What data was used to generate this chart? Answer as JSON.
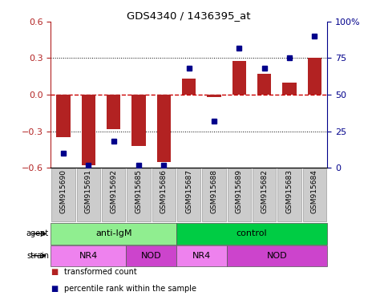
{
  "title": "GDS4340 / 1436395_at",
  "samples": [
    "GSM915690",
    "GSM915691",
    "GSM915692",
    "GSM915685",
    "GSM915686",
    "GSM915687",
    "GSM915688",
    "GSM915689",
    "GSM915682",
    "GSM915683",
    "GSM915684"
  ],
  "bar_values": [
    -0.35,
    -0.58,
    -0.28,
    -0.42,
    -0.55,
    0.13,
    -0.02,
    0.28,
    0.17,
    0.1,
    0.3
  ],
  "dot_values": [
    10,
    2,
    18,
    2,
    2,
    68,
    32,
    82,
    68,
    75,
    90
  ],
  "ylim_left": [
    -0.6,
    0.6
  ],
  "ylim_right": [
    0,
    100
  ],
  "yticks_left": [
    -0.6,
    -0.3,
    0.0,
    0.3,
    0.6
  ],
  "yticks_right": [
    0,
    25,
    50,
    75,
    100
  ],
  "yticklabels_right": [
    "0",
    "25",
    "50",
    "75",
    "100%"
  ],
  "bar_color": "#b22222",
  "dot_color": "#00008b",
  "zero_line_color": "#cc0000",
  "grid_line_color": "#000000",
  "agent_labels": [
    {
      "label": "anti-IgM",
      "start": 0,
      "end": 5
    },
    {
      "label": "control",
      "start": 5,
      "end": 11
    }
  ],
  "agent_color_light": "#90ee90",
  "agent_color_dark": "#00cc44",
  "agent_colors_per_label": {
    "anti-IgM": "#90ee90",
    "control": "#00cc44"
  },
  "strain_labels": [
    {
      "label": "NR4",
      "start": 0,
      "end": 3
    },
    {
      "label": "NOD",
      "start": 3,
      "end": 5
    },
    {
      "label": "NR4",
      "start": 5,
      "end": 7
    },
    {
      "label": "NOD",
      "start": 7,
      "end": 11
    }
  ],
  "strain_color_nr4": "#ee82ee",
  "strain_color_nod": "#cc44cc",
  "legend_red_label": "transformed count",
  "legend_blue_label": "percentile rank within the sample",
  "bg_color": "#ffffff",
  "tick_label_bg": "#cccccc"
}
